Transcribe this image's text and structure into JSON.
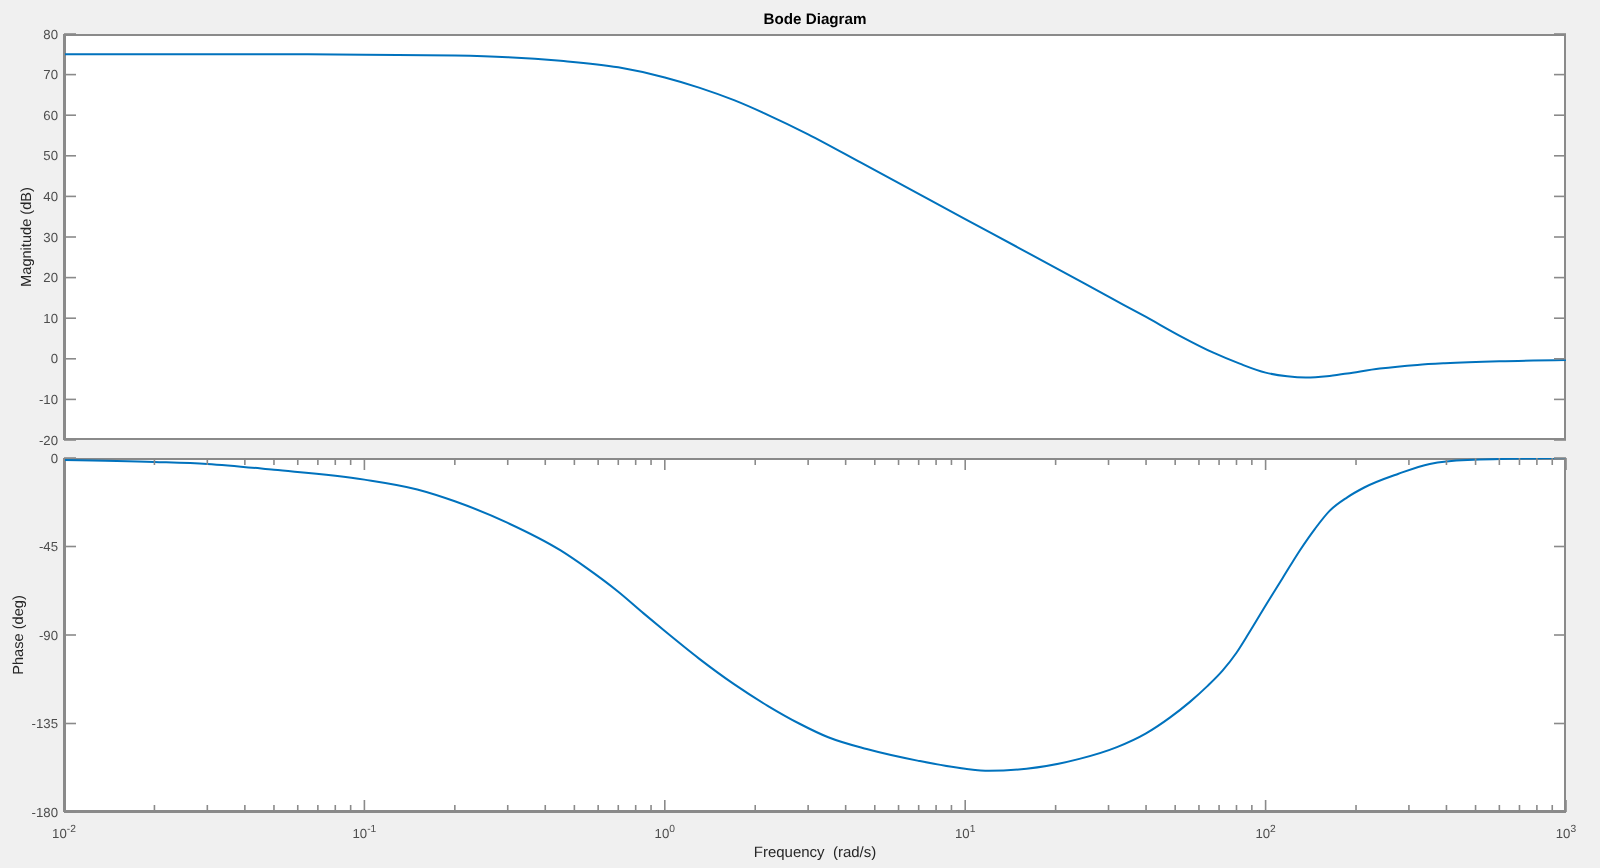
{
  "chart_data": [
    {
      "type": "line",
      "title": "Bode Diagram",
      "ylabel": "Magnitude (dB)",
      "x": [
        0.01,
        0.02,
        0.05,
        0.1,
        0.2,
        0.3,
        0.45,
        0.7,
        1,
        1.3,
        1.7,
        2.2,
        3,
        4.5,
        7,
        10,
        15,
        20,
        30,
        40,
        52,
        67,
        82,
        100,
        118,
        136,
        160,
        187,
        240,
        320,
        395,
        600,
        1000
      ],
      "series": [
        {
          "color": "#0072bd",
          "values": [
            75.0,
            75.0,
            75.0,
            74.9,
            74.7,
            74.3,
            73.4,
            71.8,
            69.3,
            66.8,
            63.7,
            60.1,
            55.3,
            48.3,
            40.6,
            34.4,
            27.4,
            22.4,
            15.3,
            10.3,
            5.6,
            1.5,
            -1.2,
            -3.4,
            -4.3,
            -4.6,
            -4.3,
            -3.6,
            -2.4,
            -1.5,
            -1.1,
            -0.6,
            -0.3
          ]
        }
      ],
      "xlim": [
        0.01,
        1000
      ],
      "xticks": [
        {
          "value": 0.01,
          "label": null
        },
        {
          "value": 0.02,
          "label": null
        },
        {
          "value": 0.03,
          "label": null
        },
        {
          "value": 0.04,
          "label": null
        },
        {
          "value": 0.05,
          "label": null
        },
        {
          "value": 0.06,
          "label": null
        },
        {
          "value": 0.07,
          "label": null
        },
        {
          "value": 0.08,
          "label": null
        },
        {
          "value": 0.09,
          "label": null
        },
        {
          "value": 0.1,
          "label": null
        },
        {
          "value": 0.2,
          "label": null
        },
        {
          "value": 0.3,
          "label": null
        },
        {
          "value": 0.4,
          "label": null
        },
        {
          "value": 0.5,
          "label": null
        },
        {
          "value": 0.6,
          "label": null
        },
        {
          "value": 0.7,
          "label": null
        },
        {
          "value": 0.8,
          "label": null
        },
        {
          "value": 0.9,
          "label": null
        },
        {
          "value": 1,
          "label": null
        },
        {
          "value": 2,
          "label": null
        },
        {
          "value": 3,
          "label": null
        },
        {
          "value": 4,
          "label": null
        },
        {
          "value": 5,
          "label": null
        },
        {
          "value": 6,
          "label": null
        },
        {
          "value": 7,
          "label": null
        },
        {
          "value": 8,
          "label": null
        },
        {
          "value": 9,
          "label": null
        },
        {
          "value": 10,
          "label": null
        },
        {
          "value": 20,
          "label": null
        },
        {
          "value": 30,
          "label": null
        },
        {
          "value": 40,
          "label": null
        },
        {
          "value": 50,
          "label": null
        },
        {
          "value": 60,
          "label": null
        },
        {
          "value": 70,
          "label": null
        },
        {
          "value": 80,
          "label": null
        },
        {
          "value": 90,
          "label": null
        },
        {
          "value": 100,
          "label": null
        },
        {
          "value": 200,
          "label": null
        },
        {
          "value": 300,
          "label": null
        },
        {
          "value": 400,
          "label": null
        },
        {
          "value": 500,
          "label": null
        },
        {
          "value": 600,
          "label": null
        },
        {
          "value": 700,
          "label": null
        },
        {
          "value": 800,
          "label": null
        },
        {
          "value": 900,
          "label": null
        },
        {
          "value": 1000,
          "label": null
        }
      ],
      "ylim": [
        -20,
        80
      ],
      "yticks": [
        -20,
        -10,
        0,
        10,
        20,
        30,
        40,
        50,
        60,
        70,
        80
      ],
      "log": "x",
      "tick_labels": "y"
    },
    {
      "type": "line",
      "xlabel": "Frequency  (rad/s)",
      "ylabel": "Phase (deg)",
      "x": [
        0.01,
        0.02,
        0.03,
        0.05,
        0.1,
        0.15,
        0.2,
        0.3,
        0.45,
        0.55,
        0.7,
        0.85,
        1,
        1.3,
        1.7,
        2.2,
        2.8,
        3.5,
        4.7,
        7,
        10,
        12,
        16,
        24,
        32,
        40,
        48,
        56,
        64,
        72,
        80,
        88,
        100,
        114,
        130,
        146,
        163,
        187,
        213,
        277,
        352,
        470,
        1000
      ],
      "series": [
        {
          "color": "#0072bd",
          "values": [
            -1,
            -2,
            -3,
            -6,
            -11,
            -16,
            -22,
            -33,
            -47,
            -56,
            -68,
            -79,
            -88,
            -102,
            -115,
            -126,
            -135,
            -142,
            -148,
            -154,
            -158,
            -159,
            -158,
            -153,
            -147,
            -140,
            -132,
            -124,
            -116,
            -108,
            -99,
            -89,
            -75,
            -61,
            -47,
            -36,
            -27,
            -20,
            -15,
            -8,
            -3,
            -1,
            0
          ]
        }
      ],
      "xlim": [
        0.01,
        1000
      ],
      "xticks": [
        {
          "value": 0.01,
          "label": "10$^{-2}$"
        },
        {
          "value": 0.02,
          "label": null
        },
        {
          "value": 0.03,
          "label": null
        },
        {
          "value": 0.04,
          "label": null
        },
        {
          "value": 0.05,
          "label": null
        },
        {
          "value": 0.06,
          "label": null
        },
        {
          "value": 0.07,
          "label": null
        },
        {
          "value": 0.08,
          "label": null
        },
        {
          "value": 0.09,
          "label": null
        },
        {
          "value": 0.1,
          "label": "10$^{-1}$"
        },
        {
          "value": 0.2,
          "label": null
        },
        {
          "value": 0.3,
          "label": null
        },
        {
          "value": 0.4,
          "label": null
        },
        {
          "value": 0.5,
          "label": null
        },
        {
          "value": 0.6,
          "label": null
        },
        {
          "value": 0.7,
          "label": null
        },
        {
          "value": 0.8,
          "label": null
        },
        {
          "value": 0.9,
          "label": null
        },
        {
          "value": 1,
          "label": "10$^{0}$"
        },
        {
          "value": 2,
          "label": null
        },
        {
          "value": 3,
          "label": null
        },
        {
          "value": 4,
          "label": null
        },
        {
          "value": 5,
          "label": null
        },
        {
          "value": 6,
          "label": null
        },
        {
          "value": 7,
          "label": null
        },
        {
          "value": 8,
          "label": null
        },
        {
          "value": 9,
          "label": null
        },
        {
          "value": 10,
          "label": "10$^{1}$"
        },
        {
          "value": 20,
          "label": null
        },
        {
          "value": 30,
          "label": null
        },
        {
          "value": 40,
          "label": null
        },
        {
          "value": 50,
          "label": null
        },
        {
          "value": 60,
          "label": null
        },
        {
          "value": 70,
          "label": null
        },
        {
          "value": 80,
          "label": null
        },
        {
          "value": 90,
          "label": null
        },
        {
          "value": 100,
          "label": "10$^{2}$"
        },
        {
          "value": 200,
          "label": null
        },
        {
          "value": 300,
          "label": null
        },
        {
          "value": 400,
          "label": null
        },
        {
          "value": 500,
          "label": null
        },
        {
          "value": 600,
          "label": null
        },
        {
          "value": 700,
          "label": null
        },
        {
          "value": 800,
          "label": null
        },
        {
          "value": 900,
          "label": null
        },
        {
          "value": 1000,
          "label": "10$^{3}$"
        }
      ],
      "ylim": [
        -180,
        0
      ],
      "yticks": [
        -180,
        -135,
        -90,
        -45,
        0
      ],
      "log": "x"
    }
  ]
}
